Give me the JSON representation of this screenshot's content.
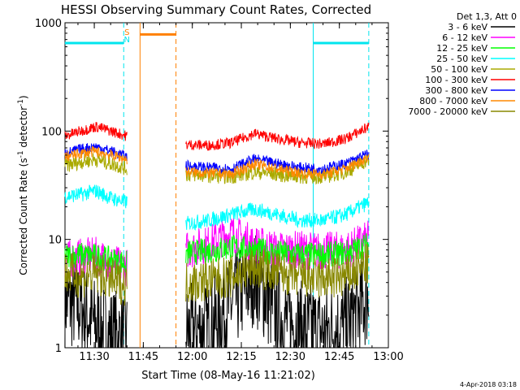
{
  "chart_data": {
    "type": "line",
    "title": "HESSI Observing Summary Count Rates, Corrected",
    "xlabel": "Start Time (08-May-16 11:21:02)",
    "ylabel_main": "Corrected Count Rate (s",
    "ylabel_sup1": "-1",
    "ylabel_mid": " detector",
    "ylabel_sup2": "-1",
    "ylabel_end": ")",
    "y_scale": "log",
    "ylim": [
      1,
      1000
    ],
    "xlim": [
      "11:21:02",
      "13:00:00"
    ],
    "x_ticks": [
      "11:30",
      "11:45",
      "12:00",
      "12:15",
      "12:30",
      "12:45",
      "13:00"
    ],
    "y_ticks": [
      "1",
      "10",
      "100",
      "1000"
    ],
    "legend_header": "Det 1,3, Att 0",
    "legend_placement": "right",
    "footer_date": "4-Apr-2018 03:18",
    "flags": {
      "s_label": "S",
      "n_label": "N",
      "cyan_bars": [
        [
          "11:21",
          "11:39"
        ],
        [
          "12:37",
          "12:54"
        ]
      ],
      "cyan_dashed": [
        "11:39",
        "12:54"
      ],
      "cyan_solid": [
        "12:37"
      ],
      "orange_bar": [
        "11:44",
        "11:55"
      ],
      "orange_solid": [
        "11:44"
      ],
      "orange_dashed": [
        "11:55"
      ],
      "data_gap": [
        "11:41",
        "11:57"
      ]
    },
    "series": [
      {
        "name": "3 - 6 keV",
        "color": "#000000",
        "values_by_segment": [
          {
            "time": [
              "11:21",
              "11:40"
            ],
            "level": [
              2.8,
              2.4,
              1.6,
              1.3,
              1.2
            ]
          },
          {
            "time": [
              "11:58",
              "12:54"
            ],
            "level": [
              1.4,
              1.5,
              2.5,
              4.5,
              2.0,
              1.5,
              1.4,
              1.6,
              3.0
            ]
          }
        ]
      },
      {
        "name": "6 - 12 keV",
        "color": "#ff00ff",
        "values_by_segment": [
          {
            "time": [
              "11:21",
              "11:40"
            ],
            "level": [
              6.5,
              6.8,
              7.0,
              6.0,
              5.5
            ]
          },
          {
            "time": [
              "11:58",
              "12:54"
            ],
            "level": [
              8.0,
              9.0,
              11.5,
              9.0,
              8.0,
              8.0,
              7.8,
              8.0,
              10.0
            ]
          }
        ]
      },
      {
        "name": "12 - 25 keV",
        "color": "#00ff00",
        "values_by_segment": [
          {
            "time": [
              "11:21",
              "11:40"
            ],
            "level": [
              7.0,
              7.2,
              7.0,
              6.5,
              6.0
            ]
          },
          {
            "time": [
              "11:58",
              "12:54"
            ],
            "level": [
              7.5,
              7.8,
              8.5,
              8.0,
              7.5,
              7.2,
              7.2,
              7.5,
              9.0
            ]
          }
        ]
      },
      {
        "name": "25 - 50 keV",
        "color": "#00ffff",
        "values_by_segment": [
          {
            "time": [
              "11:21",
              "11:40"
            ],
            "level": [
              25,
              26,
              28,
              24,
              22
            ]
          },
          {
            "time": [
              "11:58",
              "12:54"
            ],
            "level": [
              14,
              15,
              17,
              19,
              17,
              15,
              15,
              17,
              22
            ]
          }
        ]
      },
      {
        "name": "50 - 100 keV",
        "color": "#aaaa00",
        "values_by_segment": [
          {
            "time": [
              "11:21",
              "11:40"
            ],
            "level": [
              48,
              52,
              55,
              50,
              45
            ]
          },
          {
            "time": [
              "11:58",
              "12:54"
            ],
            "level": [
              40,
              39,
              38,
              42,
              40,
              38,
              38,
              42,
              55
            ]
          }
        ]
      },
      {
        "name": "100 - 300 keV",
        "color": "#ff0000",
        "values_by_segment": [
          {
            "time": [
              "11:21",
              "11:40"
            ],
            "level": [
              90,
              100,
              110,
              100,
              90
            ]
          },
          {
            "time": [
              "11:58",
              "12:54"
            ],
            "level": [
              75,
              74,
              78,
              95,
              85,
              78,
              76,
              85,
              110
            ]
          }
        ]
      },
      {
        "name": "300 - 800 keV",
        "color": "#0000ff",
        "values_by_segment": [
          {
            "time": [
              "11:21",
              "11:40"
            ],
            "level": [
              62,
              68,
              72,
              65,
              58
            ]
          },
          {
            "time": [
              "11:58",
              "12:54"
            ],
            "level": [
              48,
              46,
              45,
              55,
              50,
              46,
              45,
              50,
              62
            ]
          }
        ]
      },
      {
        "name": "800 - 7000 keV",
        "color": "#ff8800",
        "values_by_segment": [
          {
            "time": [
              "11:21",
              "11:40"
            ],
            "level": [
              58,
              62,
              65,
              60,
              55
            ]
          },
          {
            "time": [
              "11:58",
              "12:54"
            ],
            "level": [
              42,
              41,
              40,
              50,
              45,
              41,
              40,
              45,
              58
            ]
          }
        ]
      },
      {
        "name": "7000 - 20000 keV",
        "color": "#888800",
        "values_by_segment": [
          {
            "time": [
              "11:21",
              "11:40"
            ],
            "level": [
              5.0,
              4.5,
              4.8,
              4.2,
              3.8
            ]
          },
          {
            "time": [
              "11:58",
              "12:54"
            ],
            "level": [
              4.0,
              4.2,
              4.5,
              5.5,
              5.0,
              4.5,
              4.3,
              4.5,
              6.0
            ]
          }
        ]
      }
    ]
  }
}
